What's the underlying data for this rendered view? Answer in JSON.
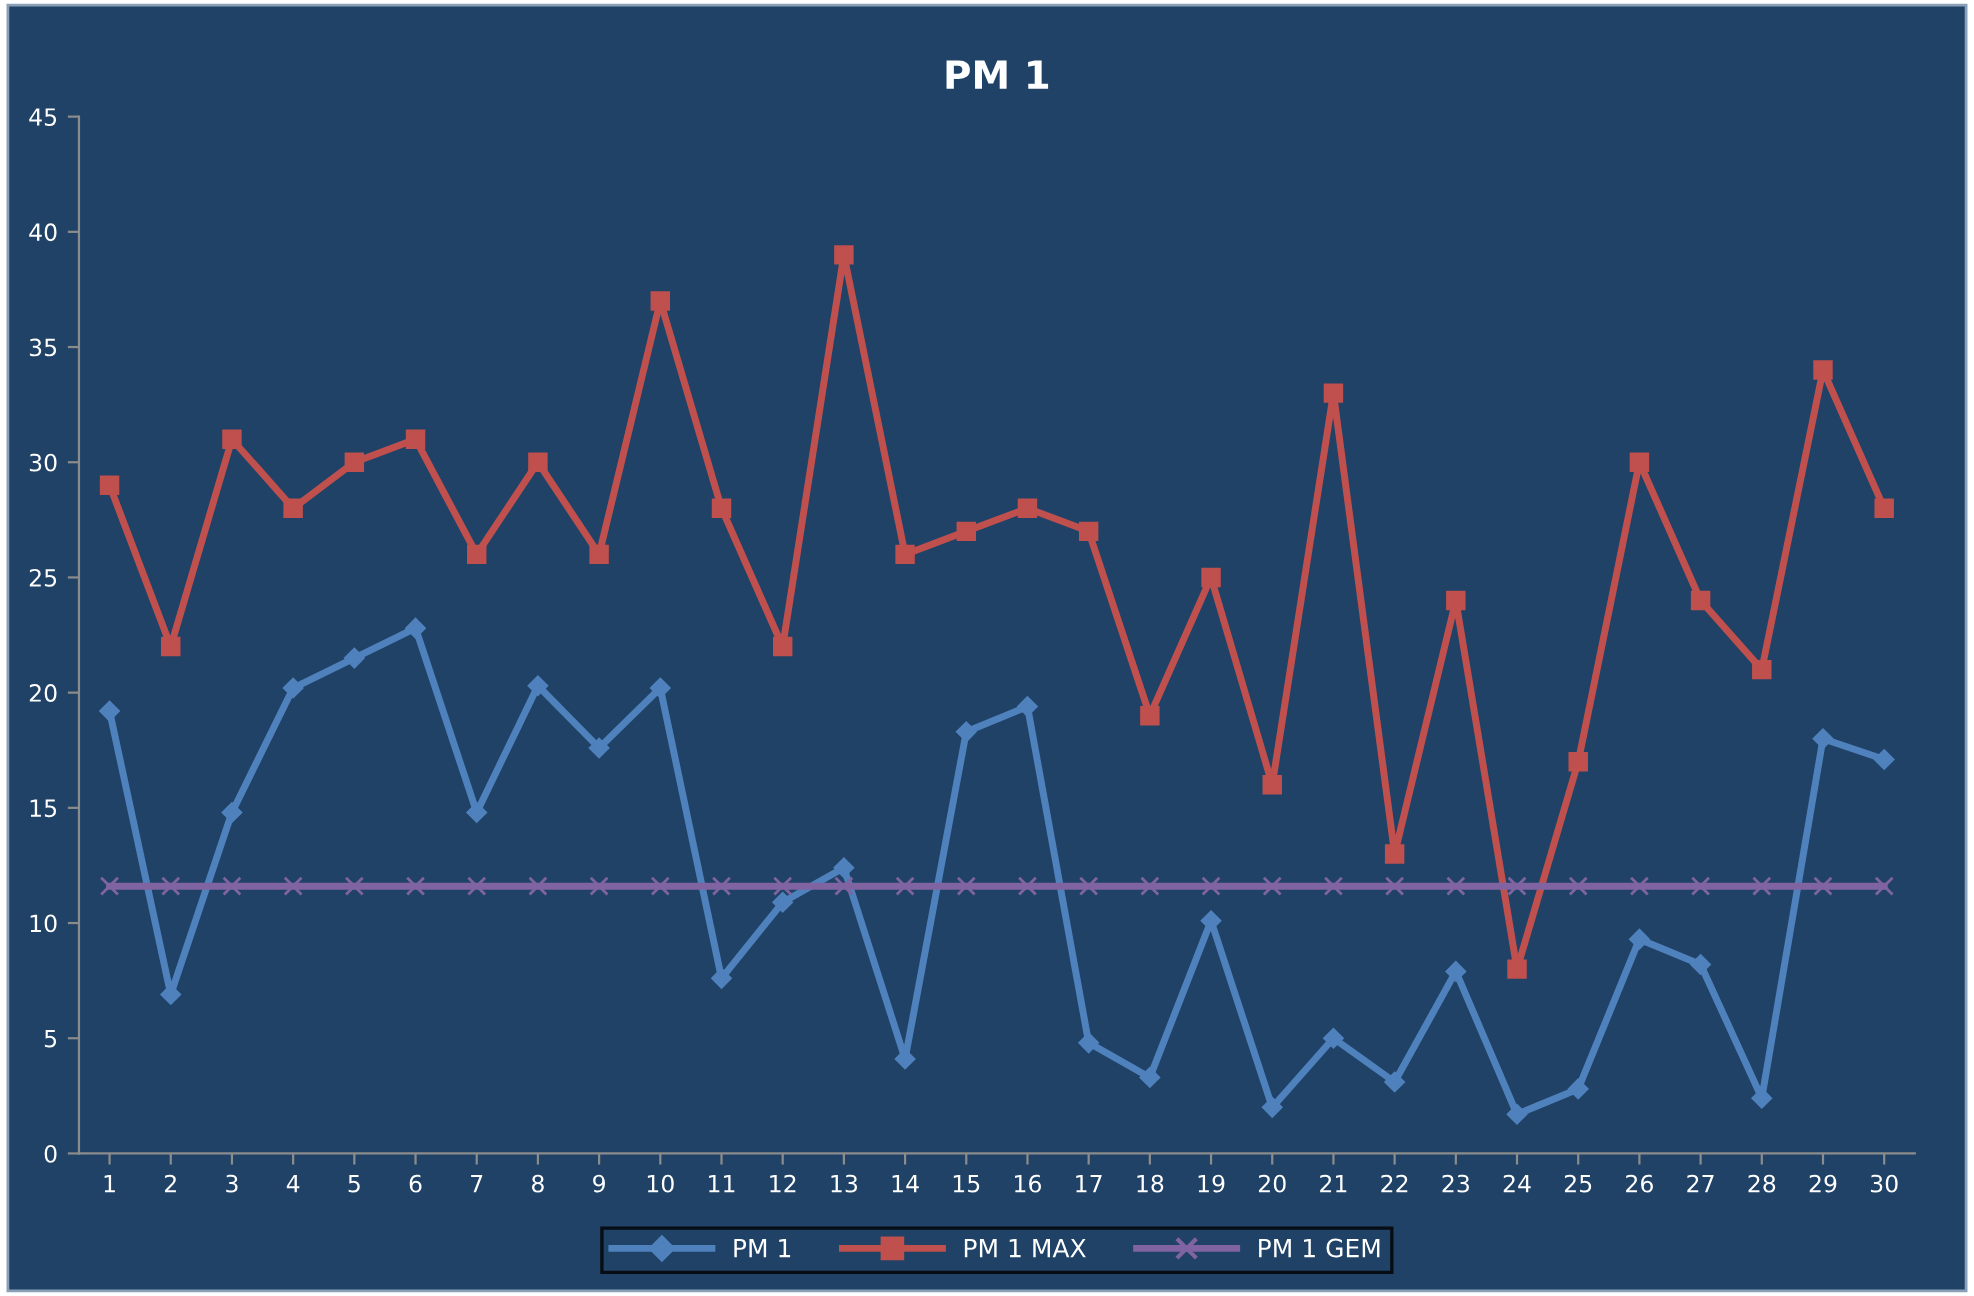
{
  "chart_data": {
    "type": "line",
    "title": "PM 1",
    "categories": [
      "1",
      "2",
      "3",
      "4",
      "5",
      "6",
      "7",
      "8",
      "9",
      "10",
      "11",
      "12",
      "13",
      "14",
      "15",
      "16",
      "17",
      "18",
      "19",
      "20",
      "21",
      "22",
      "23",
      "24",
      "25",
      "26",
      "27",
      "28",
      "29",
      "30"
    ],
    "series": [
      {
        "name": "PM 1",
        "color": "#4f81bd",
        "marker": "diamond",
        "values": [
          19.2,
          6.9,
          14.8,
          20.2,
          21.5,
          22.8,
          14.8,
          20.3,
          17.6,
          20.2,
          7.6,
          10.9,
          12.4,
          4.1,
          18.3,
          19.4,
          4.8,
          3.3,
          10.1,
          2.0,
          5.0,
          3.1,
          7.9,
          1.7,
          2.8,
          9.3,
          8.2,
          2.4,
          18.0,
          17.1
        ]
      },
      {
        "name": "PM 1 MAX",
        "color": "#c0504d",
        "marker": "square",
        "values": [
          29,
          22,
          31,
          28,
          30,
          31,
          26,
          30,
          26,
          37,
          28,
          22,
          39,
          26,
          27,
          28,
          27,
          19,
          25,
          16,
          33,
          13,
          24,
          8,
          17,
          30,
          24,
          21,
          34,
          28
        ]
      },
      {
        "name": "PM 1 GEM",
        "color": "#8064a2",
        "marker": "cross",
        "values": [
          11.6,
          11.6,
          11.6,
          11.6,
          11.6,
          11.6,
          11.6,
          11.6,
          11.6,
          11.6,
          11.6,
          11.6,
          11.6,
          11.6,
          11.6,
          11.6,
          11.6,
          11.6,
          11.6,
          11.6,
          11.6,
          11.6,
          11.6,
          11.6,
          11.6,
          11.6,
          11.6,
          11.6,
          11.6,
          11.6
        ]
      }
    ],
    "ylim": [
      0,
      45
    ],
    "yticks": [
      0,
      5,
      10,
      15,
      20,
      25,
      30,
      35,
      40,
      45
    ],
    "grid": false,
    "legend": "bottom",
    "line_style": "solid"
  }
}
